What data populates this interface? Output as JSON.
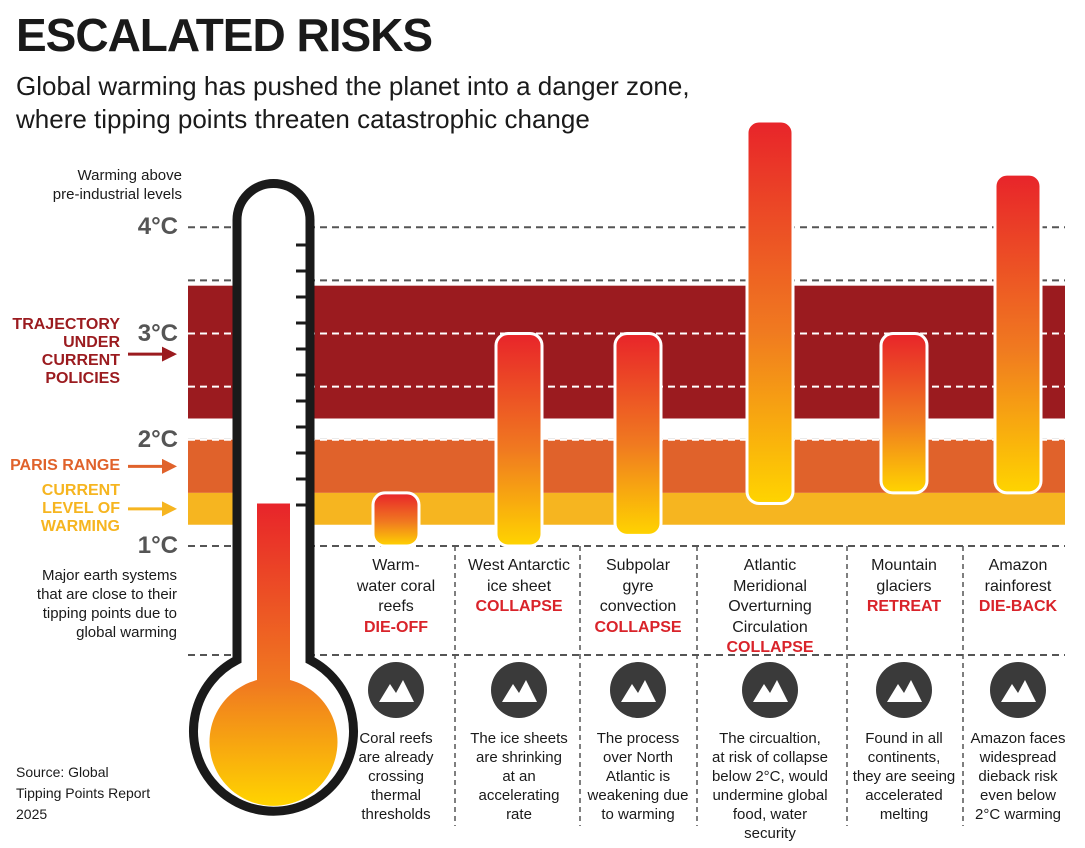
{
  "title": "ESCALATED RISKS",
  "subtitle": "Global warming has pushed the planet into a danger zone,\nwhere tipping points threaten catastrophic change",
  "source": "Source: Global\nTipping Points Report\n2025",
  "chart_data": {
    "type": "range_bar",
    "y_axis_label": "Warming above\npre-industrial levels",
    "ylim": [
      1,
      5
    ],
    "yticks": [
      {
        "value": 1,
        "label": "1°C"
      },
      {
        "value": 2,
        "label": "2°C"
      },
      {
        "value": 3,
        "label": "3°C"
      },
      {
        "value": 4,
        "label": "4°C"
      }
    ],
    "minor_yticks": [
      2.5,
      3.5
    ],
    "bands": [
      {
        "name": "TRAJECTORY\nUNDER\nCURRENT\nPOLICIES",
        "color": "#9b1b1f",
        "low": 2.2,
        "high": 3.45
      },
      {
        "name": "PARIS RANGE",
        "color": "#e0622b",
        "low": 1.5,
        "high": 2.0
      },
      {
        "name": "CURRENT\nLEVEL OF\nWARMING",
        "color": "#f6b520",
        "low": 1.2,
        "high": 1.5
      }
    ],
    "thermometer_level": 1.4,
    "systems_intro": "Major earth systems\nthat are close to their\ntipping points due to\nglobal warming",
    "categories": [
      "Warm-\nwater coral\nreefs",
      "West Antarctic\nice sheet",
      "Subpolar\ngyre\nconvection",
      "Atlantic Meridional\nOverturning\nCirculation",
      "Mountain\nglaciers",
      "Amazon\nrainforest"
    ],
    "impacts": [
      "DIE-OFF",
      "COLLAPSE",
      "COLLAPSE",
      "COLLAPSE",
      "RETREAT",
      "DIE-BACK"
    ],
    "descriptions": [
      "Coral reefs\nare already\ncrossing\nthermal\nthresholds",
      "The ice sheets\nare shrinking\nat an\naccelerating\nrate",
      "The process\nover North\nAtlantic is\nweakening due\nto warming",
      "The circualtion,\nat risk of collapse\nbelow 2°C, would\nundermine global\nfood, water security",
      "Found in all\ncontinents,\nthey are seeing\naccelerated\nmelting",
      "Amazon faces\nwidespread\ndieback risk\neven below\n2°C warming"
    ],
    "low": [
      1.0,
      1.0,
      1.1,
      1.4,
      1.5,
      1.5
    ],
    "high": [
      1.5,
      3.0,
      3.0,
      5.0,
      3.0,
      4.5
    ],
    "bar_colors": [
      "#e8242a",
      "#ffd400"
    ]
  }
}
